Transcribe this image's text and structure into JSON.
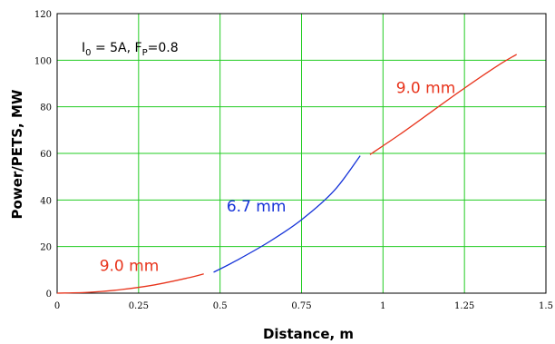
{
  "chart_data": {
    "type": "line",
    "xlabel": "Distance, m",
    "ylabel": "Power/PETS, MW",
    "xlim": [
      0,
      1.5
    ],
    "ylim": [
      0,
      120
    ],
    "x_ticks": [
      "0",
      "0.25",
      "0.5",
      "0.75",
      "1",
      "1.25",
      "1.5"
    ],
    "y_ticks": [
      "0",
      "20",
      "40",
      "60",
      "80",
      "100",
      "120"
    ],
    "grid": true,
    "annotation": {
      "parts": [
        {
          "text": "I",
          "sub": false
        },
        {
          "text": "0",
          "sub": true
        },
        {
          "text": " = 5A, F",
          "sub": false
        },
        {
          "text": "P",
          "sub": true
        },
        {
          "text": "=0.8",
          "sub": false
        }
      ]
    },
    "series": [
      {
        "name": "9.0 mm",
        "color": "#e8341c",
        "points": [
          [
            0,
            0
          ],
          [
            0.1,
            0.4
          ],
          [
            0.2,
            1.6
          ],
          [
            0.3,
            3.6
          ],
          [
            0.4,
            6.5
          ],
          [
            0.45,
            8.3
          ]
        ]
      },
      {
        "name": "6.7 mm",
        "color": "#1432d8",
        "points": [
          [
            0.48,
            9
          ],
          [
            0.55,
            14
          ],
          [
            0.65,
            22
          ],
          [
            0.75,
            31.5
          ],
          [
            0.85,
            44
          ],
          [
            0.93,
            59
          ]
        ]
      },
      {
        "name": "9.0 mm",
        "color": "#e8341c",
        "points": [
          [
            0.96,
            59.5
          ],
          [
            1.05,
            68
          ],
          [
            1.15,
            78
          ],
          [
            1.25,
            88
          ],
          [
            1.35,
            97.5
          ],
          [
            1.41,
            102.5
          ]
        ]
      }
    ]
  },
  "colors": {
    "plot_background": "#ffffff",
    "grid": "#22cc22",
    "frame": "#000000"
  }
}
